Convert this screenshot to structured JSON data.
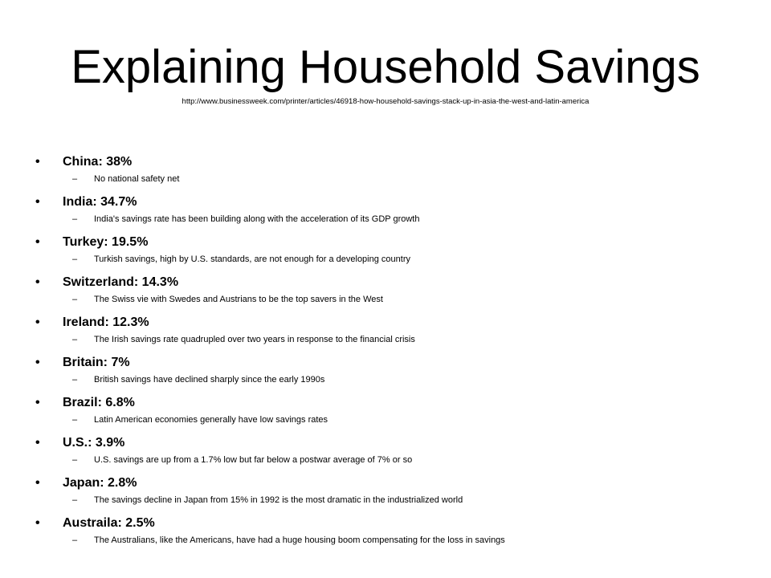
{
  "slide": {
    "title": "Explaining Household Savings",
    "source_url": "http://www.businessweek.com/printer/articles/46918-how-household-savings-stack-up-in-asia-the-west-and-latin-america",
    "bullet_char": "•",
    "dash_char": "–",
    "items": [
      {
        "label": "China: 38%",
        "note": "No national safety net"
      },
      {
        "label": "India: 34.7%",
        "note": "India's savings rate has been building along with the acceleration of its GDP growth"
      },
      {
        "label": "Turkey: 19.5%",
        "note": "Turkish  savings, high by U.S. standards, are not enough for a developing country"
      },
      {
        "label": "Switzerland: 14.3%",
        "note": "The Swiss vie with Swedes and Austrians to be the top savers in the West"
      },
      {
        "label": "Ireland: 12.3%",
        "note": "The Irish savings rate quadrupled over two years in response to the financial crisis"
      },
      {
        "label": "Britain: 7%",
        "note": "British savings have declined sharply since the early 1990s"
      },
      {
        "label": "Brazil: 6.8%",
        "note": "Latin American economies generally have low savings rates"
      },
      {
        "label": "U.S.: 3.9%",
        "note": "U.S. savings are up from a 1.7% low but far below a postwar average of 7% or so"
      },
      {
        "label": "Japan: 2.8%",
        "note": "The savings decline in Japan from 15% in 1992 is the most dramatic in the industrialized world"
      },
      {
        "label": "Austraila: 2.5%",
        "note": "The Australians, like the Americans, have had a huge housing boom compensating for the loss in savings"
      }
    ]
  }
}
